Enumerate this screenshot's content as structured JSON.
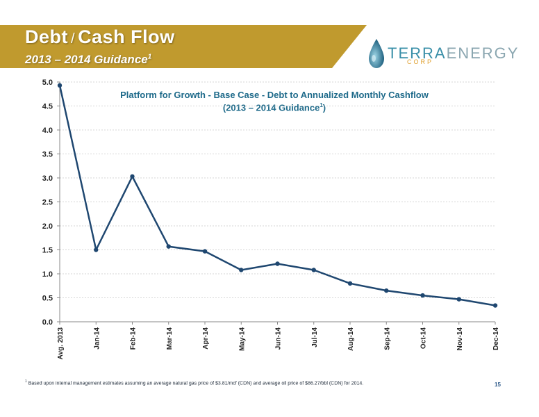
{
  "header": {
    "title_part1": "Debt",
    "title_sep": "/",
    "title_part2": "Cash Flow",
    "subtitle": "2013 – 2014 Guidance",
    "subtitle_sup": "1"
  },
  "logo": {
    "terra": "TERRA",
    "energy": "ENERGY",
    "corp": "CORP"
  },
  "colors": {
    "banner": "#c09a2e",
    "line": "#1f4770",
    "title": "#1e6a8a"
  },
  "chart_data": {
    "type": "line",
    "title_line1": "Platform for Growth - Base Case - Debt to Annualized Monthly Cashflow",
    "title_line2": "(2013 – 2014 Guidance",
    "title_line2_sup": "1",
    "title_line2_end": ")",
    "categories": [
      "Avg. 2013",
      "Jan-14",
      "Feb-14",
      "Mar-14",
      "Apr-14",
      "May-14",
      "Jun-14",
      "Jul-14",
      "Aug-14",
      "Sep-14",
      "Oct-14",
      "Nov-14",
      "Dec-14"
    ],
    "values": [
      4.93,
      1.5,
      3.03,
      1.57,
      1.47,
      1.08,
      1.21,
      1.08,
      0.8,
      0.65,
      0.55,
      0.47,
      0.34
    ],
    "ylim": [
      0,
      5
    ],
    "yticks": [
      "0.0",
      "0.5",
      "1.0",
      "1.5",
      "2.0",
      "2.5",
      "3.0",
      "3.5",
      "4.0",
      "4.5",
      "5.0"
    ],
    "grid": true
  },
  "footnote": {
    "sup": "1",
    "text": "Based upon internal management estimates assuming an average natural gas price of $3.81/mcf (CDN) and average oil price of $86.27/bbl (CDN) for 2014."
  },
  "page_number": "15"
}
